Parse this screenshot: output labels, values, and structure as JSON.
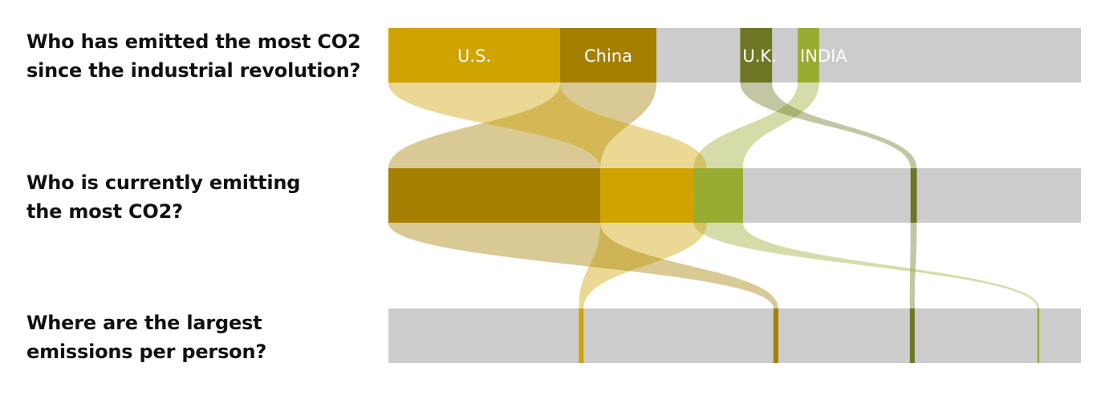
{
  "questions": [
    {
      "line1": "Who has emitted the most CO2",
      "line2": "since the industrial revolution?"
    },
    {
      "line1": "Who is currently emitting",
      "line2": "the most CO2?"
    },
    {
      "line1": "Where are the largest",
      "line2": "emissions per person?"
    }
  ],
  "colors": {
    "us": "#cfa300",
    "china": "#a57f00",
    "uk": "#6e7624",
    "india": "#9aab32",
    "other": "#cccccc"
  },
  "chart_data": {
    "type": "flow",
    "rows": [
      {
        "question": "Who has emitted the most CO2 since the industrial revolution?"
      },
      {
        "question": "Who is currently emitting the most CO2?"
      },
      {
        "question": "Where are the largest emissions per person?"
      }
    ],
    "series": [
      {
        "id": "us",
        "name": "U.S.",
        "color": "#cfa300",
        "share_pct": [
          24.8,
          15.4,
          0.7
        ]
      },
      {
        "id": "china",
        "name": "China",
        "color": "#a57f00",
        "share_pct": [
          13.9,
          30.6,
          0.7
        ]
      },
      {
        "id": "uk",
        "name": "U.K.",
        "color": "#6e7624",
        "share_pct": [
          4.6,
          0.9,
          0.7
        ]
      },
      {
        "id": "india",
        "name": "INDIA",
        "color": "#9aab32",
        "share_pct": [
          3.1,
          7.1,
          0.3
        ]
      }
    ],
    "row_order": [
      [
        "us",
        "china",
        "uk",
        "india"
      ],
      [
        "china",
        "us",
        "india",
        "uk"
      ],
      [
        "us",
        "china",
        "uk",
        "india"
      ]
    ],
    "rank_position_pct": [
      [
        0,
        24.8,
        50.8,
        59.1
      ],
      [
        0,
        30.6,
        44.1,
        75.4
      ],
      [
        27.5,
        55.6,
        75.3,
        93.7
      ]
    ]
  }
}
